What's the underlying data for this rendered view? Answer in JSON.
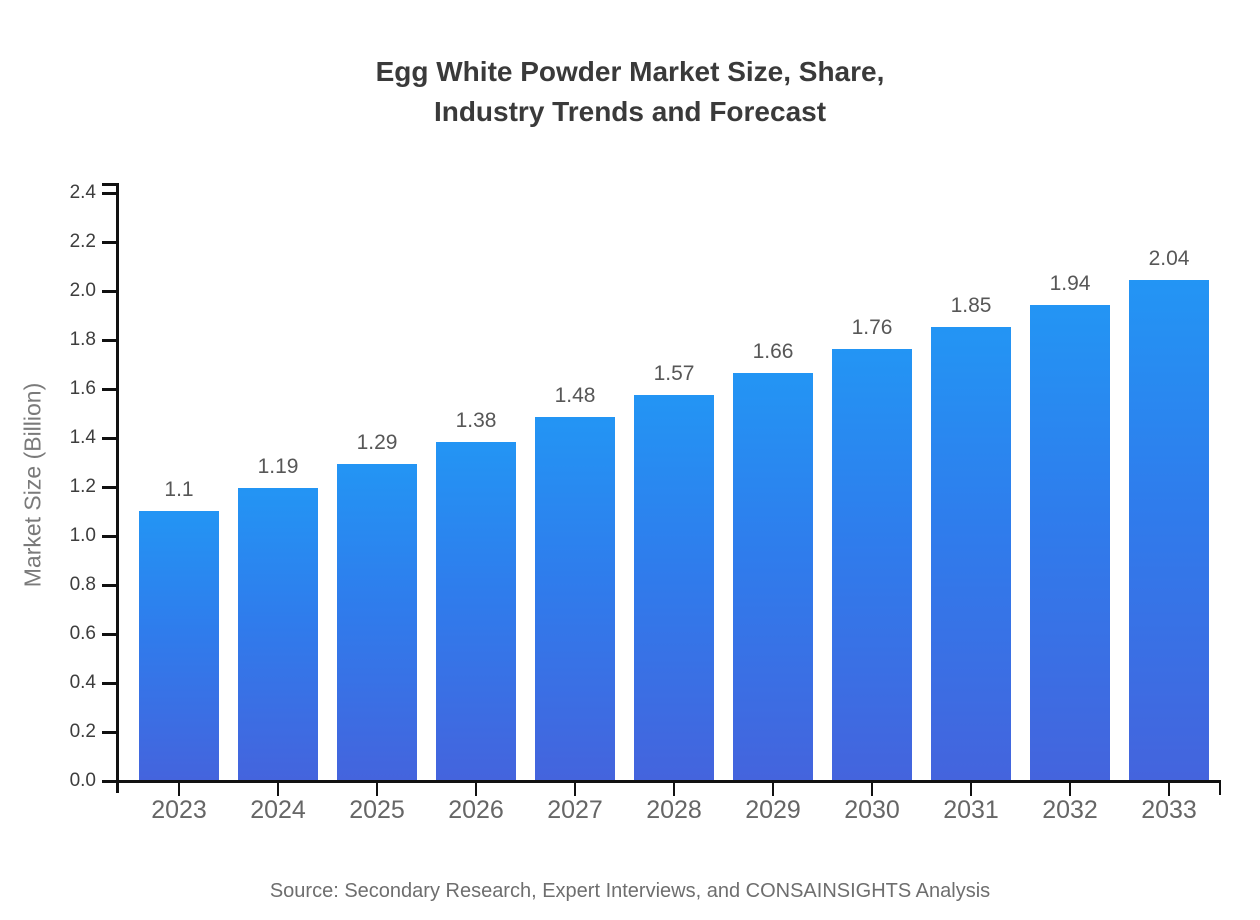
{
  "title": {
    "line1": "Egg White Powder Market Size, Share,",
    "line2": "Industry Trends and Forecast"
  },
  "source_note": "Source: Secondary Research, Expert Interviews, and CONSAINSIGHTS Analysis",
  "chart_data": {
    "type": "bar",
    "title": "Egg White Powder Market Size, Share, Industry Trends and Forecast",
    "categories": [
      "2023",
      "2024",
      "2025",
      "2026",
      "2027",
      "2028",
      "2029",
      "2030",
      "2031",
      "2032",
      "2033"
    ],
    "values": [
      1.1,
      1.19,
      1.29,
      1.38,
      1.48,
      1.57,
      1.66,
      1.76,
      1.85,
      1.94,
      2.04
    ],
    "value_labels": [
      "1.1",
      "1.19",
      "1.29",
      "1.38",
      "1.48",
      "1.57",
      "1.66",
      "1.76",
      "1.85",
      "1.94",
      "2.04"
    ],
    "xlabel": "",
    "ylabel": "Market Size (Billion)",
    "ylim": [
      0,
      2.4
    ],
    "ytick_step": 0.2,
    "grid": false,
    "legend": "none",
    "colors": {
      "bar_gradient_top": "#2395f4",
      "bar_gradient_bottom": "#4464dd",
      "axis": "#111111",
      "title_text": "#3a3a3a",
      "tick_text": "#3d3d3d",
      "category_text": "#666666",
      "value_text": "#575757",
      "source_text": "#6e6e6e"
    }
  }
}
